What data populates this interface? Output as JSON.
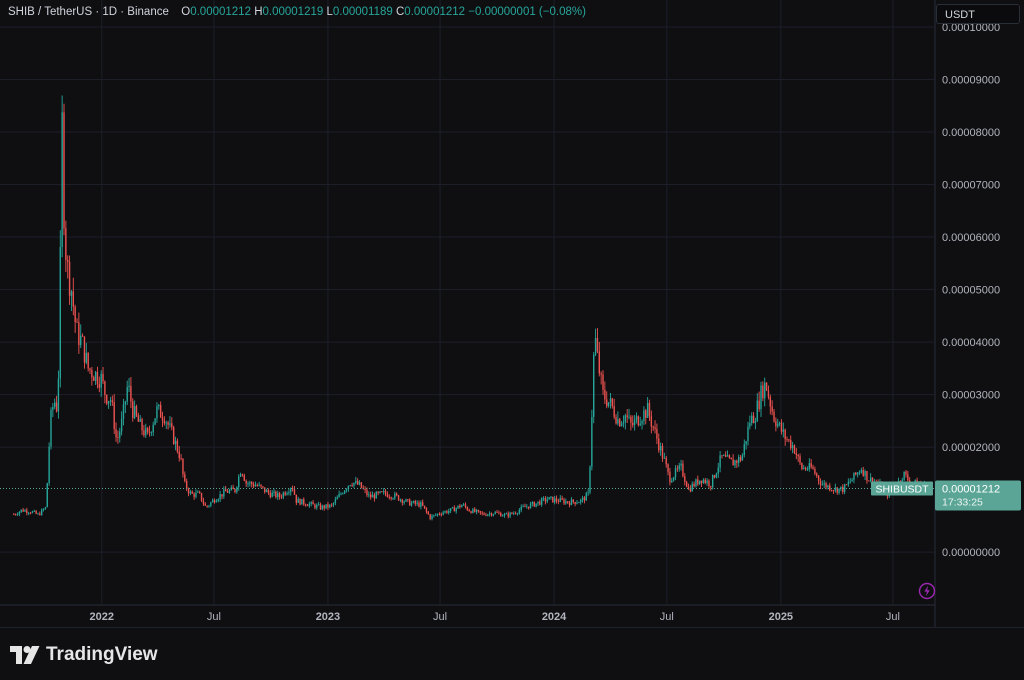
{
  "header": {
    "symbol": "SHIB / TetherUS · 1D · Binance",
    "o_label": "O",
    "o_value": "0.00001212",
    "h_label": "H",
    "h_value": "0.00001219",
    "l_label": "L",
    "l_value": "0.00001189",
    "c_label": "C",
    "c_value": "0.00001212",
    "change": "−0.00000001 (−0.08%)"
  },
  "unit_label": "USDT",
  "price_label": {
    "symbol": "SHIBUSDT",
    "price": "0.00001212",
    "countdown": "17:33:25"
  },
  "footer": {
    "logo_text": "TradingView"
  },
  "colors": {
    "up": "#26a69a",
    "down": "#ef5350",
    "last_price": "#5aa596",
    "grid": "#1c1f2a",
    "axis_text": "#b2b5be"
  },
  "icons": {
    "flash": "lightning-icon",
    "logo": "tradingview-logo-icon"
  },
  "chart_data": {
    "type": "line",
    "title": "",
    "xlabel": "",
    "ylabel": "",
    "ylim": [
      -9.5e-06,
      0.0001
    ],
    "y_ticks": [
      {
        "value": 0.0001,
        "label": "0.00010000"
      },
      {
        "value": 9e-05,
        "label": "0.00009000"
      },
      {
        "value": 8e-05,
        "label": "0.00008000"
      },
      {
        "value": 7e-05,
        "label": "0.00007000"
      },
      {
        "value": 6e-05,
        "label": "0.00006000"
      },
      {
        "value": 5e-05,
        "label": "0.00005000"
      },
      {
        "value": 4e-05,
        "label": "0.00004000"
      },
      {
        "value": 3e-05,
        "label": "0.00003000"
      },
      {
        "value": 2e-05,
        "label": "0.00002000"
      },
      {
        "value": 0,
        "label": "0.00000000"
      }
    ],
    "x_ticks": [
      {
        "date": "2022-01-01",
        "label": "2022"
      },
      {
        "date": "2022-07-01",
        "label": "Jul"
      },
      {
        "date": "2023-01-01",
        "label": "2023"
      },
      {
        "date": "2023-07-01",
        "label": "Jul"
      },
      {
        "date": "2024-01-01",
        "label": "2024"
      },
      {
        "date": "2024-07-01",
        "label": "Jul"
      },
      {
        "date": "2025-01-01",
        "label": "2025"
      },
      {
        "date": "2025-07-01",
        "label": "Jul"
      }
    ],
    "last_price": 1.212e-05,
    "grid": true,
    "series": [
      {
        "points": [
          [
            "2021-08-12",
            7.2e-06
          ],
          [
            "2021-08-25",
            8e-06
          ],
          [
            "2021-09-07",
            7.8e-06
          ],
          [
            "2021-09-20",
            7.1e-06
          ],
          [
            "2021-10-03",
            8.5e-06
          ],
          [
            "2021-10-10",
            2.5e-05
          ],
          [
            "2021-10-16",
            2.9e-05
          ],
          [
            "2021-10-22",
            2.7e-05
          ],
          [
            "2021-10-26",
            5.5e-05
          ],
          [
            "2021-10-28",
            8.8e-05
          ],
          [
            "2021-10-31",
            6.8e-05
          ],
          [
            "2021-11-05",
            5.5e-05
          ],
          [
            "2021-11-13",
            5e-05
          ],
          [
            "2021-11-21",
            4.2e-05
          ],
          [
            "2021-11-30",
            4e-05
          ],
          [
            "2021-12-10",
            3.5e-05
          ],
          [
            "2021-12-20",
            3.4e-05
          ],
          [
            "2021-12-31",
            3.3e-05
          ],
          [
            "2022-01-07",
            3e-05
          ],
          [
            "2022-01-16",
            2.9e-05
          ],
          [
            "2022-01-25",
            2.1e-05
          ],
          [
            "2022-02-03",
            2.5e-05
          ],
          [
            "2022-02-12",
            3.2e-05
          ],
          [
            "2022-02-20",
            2.7e-05
          ],
          [
            "2022-03-04",
            2.4e-05
          ],
          [
            "2022-03-16",
            2.2e-05
          ],
          [
            "2022-03-31",
            2.7e-05
          ],
          [
            "2022-04-12",
            2.6e-05
          ],
          [
            "2022-04-26",
            2.2e-05
          ],
          [
            "2022-05-08",
            1.8e-05
          ],
          [
            "2022-05-14",
            1.3e-05
          ],
          [
            "2022-05-25",
            1.1e-05
          ],
          [
            "2022-06-07",
            1.1e-05
          ],
          [
            "2022-06-18",
            8.5e-06
          ],
          [
            "2022-07-03",
            1.02e-05
          ],
          [
            "2022-07-20",
            1.15e-05
          ],
          [
            "2022-08-04",
            1.18e-05
          ],
          [
            "2022-08-14",
            1.6e-05
          ],
          [
            "2022-08-22",
            1.32e-05
          ],
          [
            "2022-09-07",
            1.28e-05
          ],
          [
            "2022-09-28",
            1.12e-05
          ],
          [
            "2022-10-15",
            1.06e-05
          ],
          [
            "2022-10-29",
            1.2e-05
          ],
          [
            "2022-11-04",
            1.28e-05
          ],
          [
            "2022-11-11",
            9.8e-06
          ],
          [
            "2022-11-30",
            9.2e-06
          ],
          [
            "2022-12-20",
            8.5e-06
          ],
          [
            "2023-01-07",
            8.8e-06
          ],
          [
            "2023-01-26",
            1.18e-05
          ],
          [
            "2023-02-07",
            1.34e-05
          ],
          [
            "2023-02-20",
            1.28e-05
          ],
          [
            "2023-03-09",
            1.05e-05
          ],
          [
            "2023-04-02",
            1.12e-05
          ],
          [
            "2023-04-20",
            1.06e-05
          ],
          [
            "2023-05-11",
            9.4e-06
          ],
          [
            "2023-06-01",
            9e-06
          ],
          [
            "2023-06-15",
            6.6e-06
          ],
          [
            "2023-07-02",
            7.5e-06
          ],
          [
            "2023-07-20",
            8e-06
          ],
          [
            "2023-08-06",
            9e-06
          ],
          [
            "2023-08-17",
            8e-06
          ],
          [
            "2023-09-08",
            7.2e-06
          ],
          [
            "2023-09-27",
            7.5e-06
          ],
          [
            "2023-10-15",
            7e-06
          ],
          [
            "2023-10-27",
            7.4e-06
          ],
          [
            "2023-11-15",
            8.6e-06
          ],
          [
            "2023-12-04",
            9.3e-06
          ],
          [
            "2023-12-21",
            1.01e-05
          ],
          [
            "2024-01-10",
            9.8e-06
          ],
          [
            "2024-01-27",
            9.5e-06
          ],
          [
            "2024-02-14",
            9.8e-06
          ],
          [
            "2024-02-26",
            1.1e-05
          ],
          [
            "2024-03-01",
            2.3e-05
          ],
          [
            "2024-03-05",
            3.7e-05
          ],
          [
            "2024-03-07",
            4.1e-05
          ],
          [
            "2024-03-12",
            3.6e-05
          ],
          [
            "2024-03-20",
            3e-05
          ],
          [
            "2024-04-02",
            2.8e-05
          ],
          [
            "2024-04-14",
            2.5e-05
          ],
          [
            "2024-04-25",
            2.6e-05
          ],
          [
            "2024-05-05",
            2.4e-05
          ],
          [
            "2024-05-20",
            2.6e-05
          ],
          [
            "2024-05-31",
            2.7e-05
          ],
          [
            "2024-06-14",
            2.2e-05
          ],
          [
            "2024-06-28",
            1.7e-05
          ],
          [
            "2024-07-05",
            1.4e-05
          ],
          [
            "2024-07-24",
            1.6e-05
          ],
          [
            "2024-08-05",
            1.2e-05
          ],
          [
            "2024-08-25",
            1.4e-05
          ],
          [
            "2024-09-10",
            1.3e-05
          ],
          [
            "2024-09-27",
            1.8e-05
          ],
          [
            "2024-10-15",
            1.7e-05
          ],
          [
            "2024-10-30",
            1.8e-05
          ],
          [
            "2024-11-12",
            2.5e-05
          ],
          [
            "2024-11-20",
            2.6e-05
          ],
          [
            "2024-12-02",
            3.1e-05
          ],
          [
            "2024-12-08",
            3.2e-05
          ],
          [
            "2024-12-20",
            2.6e-05
          ],
          [
            "2025-01-07",
            2.2e-05
          ],
          [
            "2025-01-22",
            2e-05
          ],
          [
            "2025-02-03",
            1.6e-05
          ],
          [
            "2025-02-20",
            1.6e-05
          ],
          [
            "2025-03-08",
            1.3e-05
          ],
          [
            "2025-03-30",
            1.2e-05
          ],
          [
            "2025-04-12",
            1.2e-05
          ],
          [
            "2025-04-27",
            1.4e-05
          ],
          [
            "2025-05-11",
            1.6e-05
          ],
          [
            "2025-05-22",
            1.4e-05
          ],
          [
            "2025-06-07",
            1.3e-05
          ],
          [
            "2025-06-20",
            1.1e-05
          ],
          [
            "2025-07-04",
            1.2e-05
          ],
          [
            "2025-07-18",
            1.5e-05
          ],
          [
            "2025-07-30",
            1.3e-05
          ],
          [
            "2025-08-13",
            1.3e-05
          ],
          [
            "2025-08-23",
            1.25e-05
          ],
          [
            "2025-08-28",
            1.212e-05
          ]
        ]
      }
    ]
  }
}
